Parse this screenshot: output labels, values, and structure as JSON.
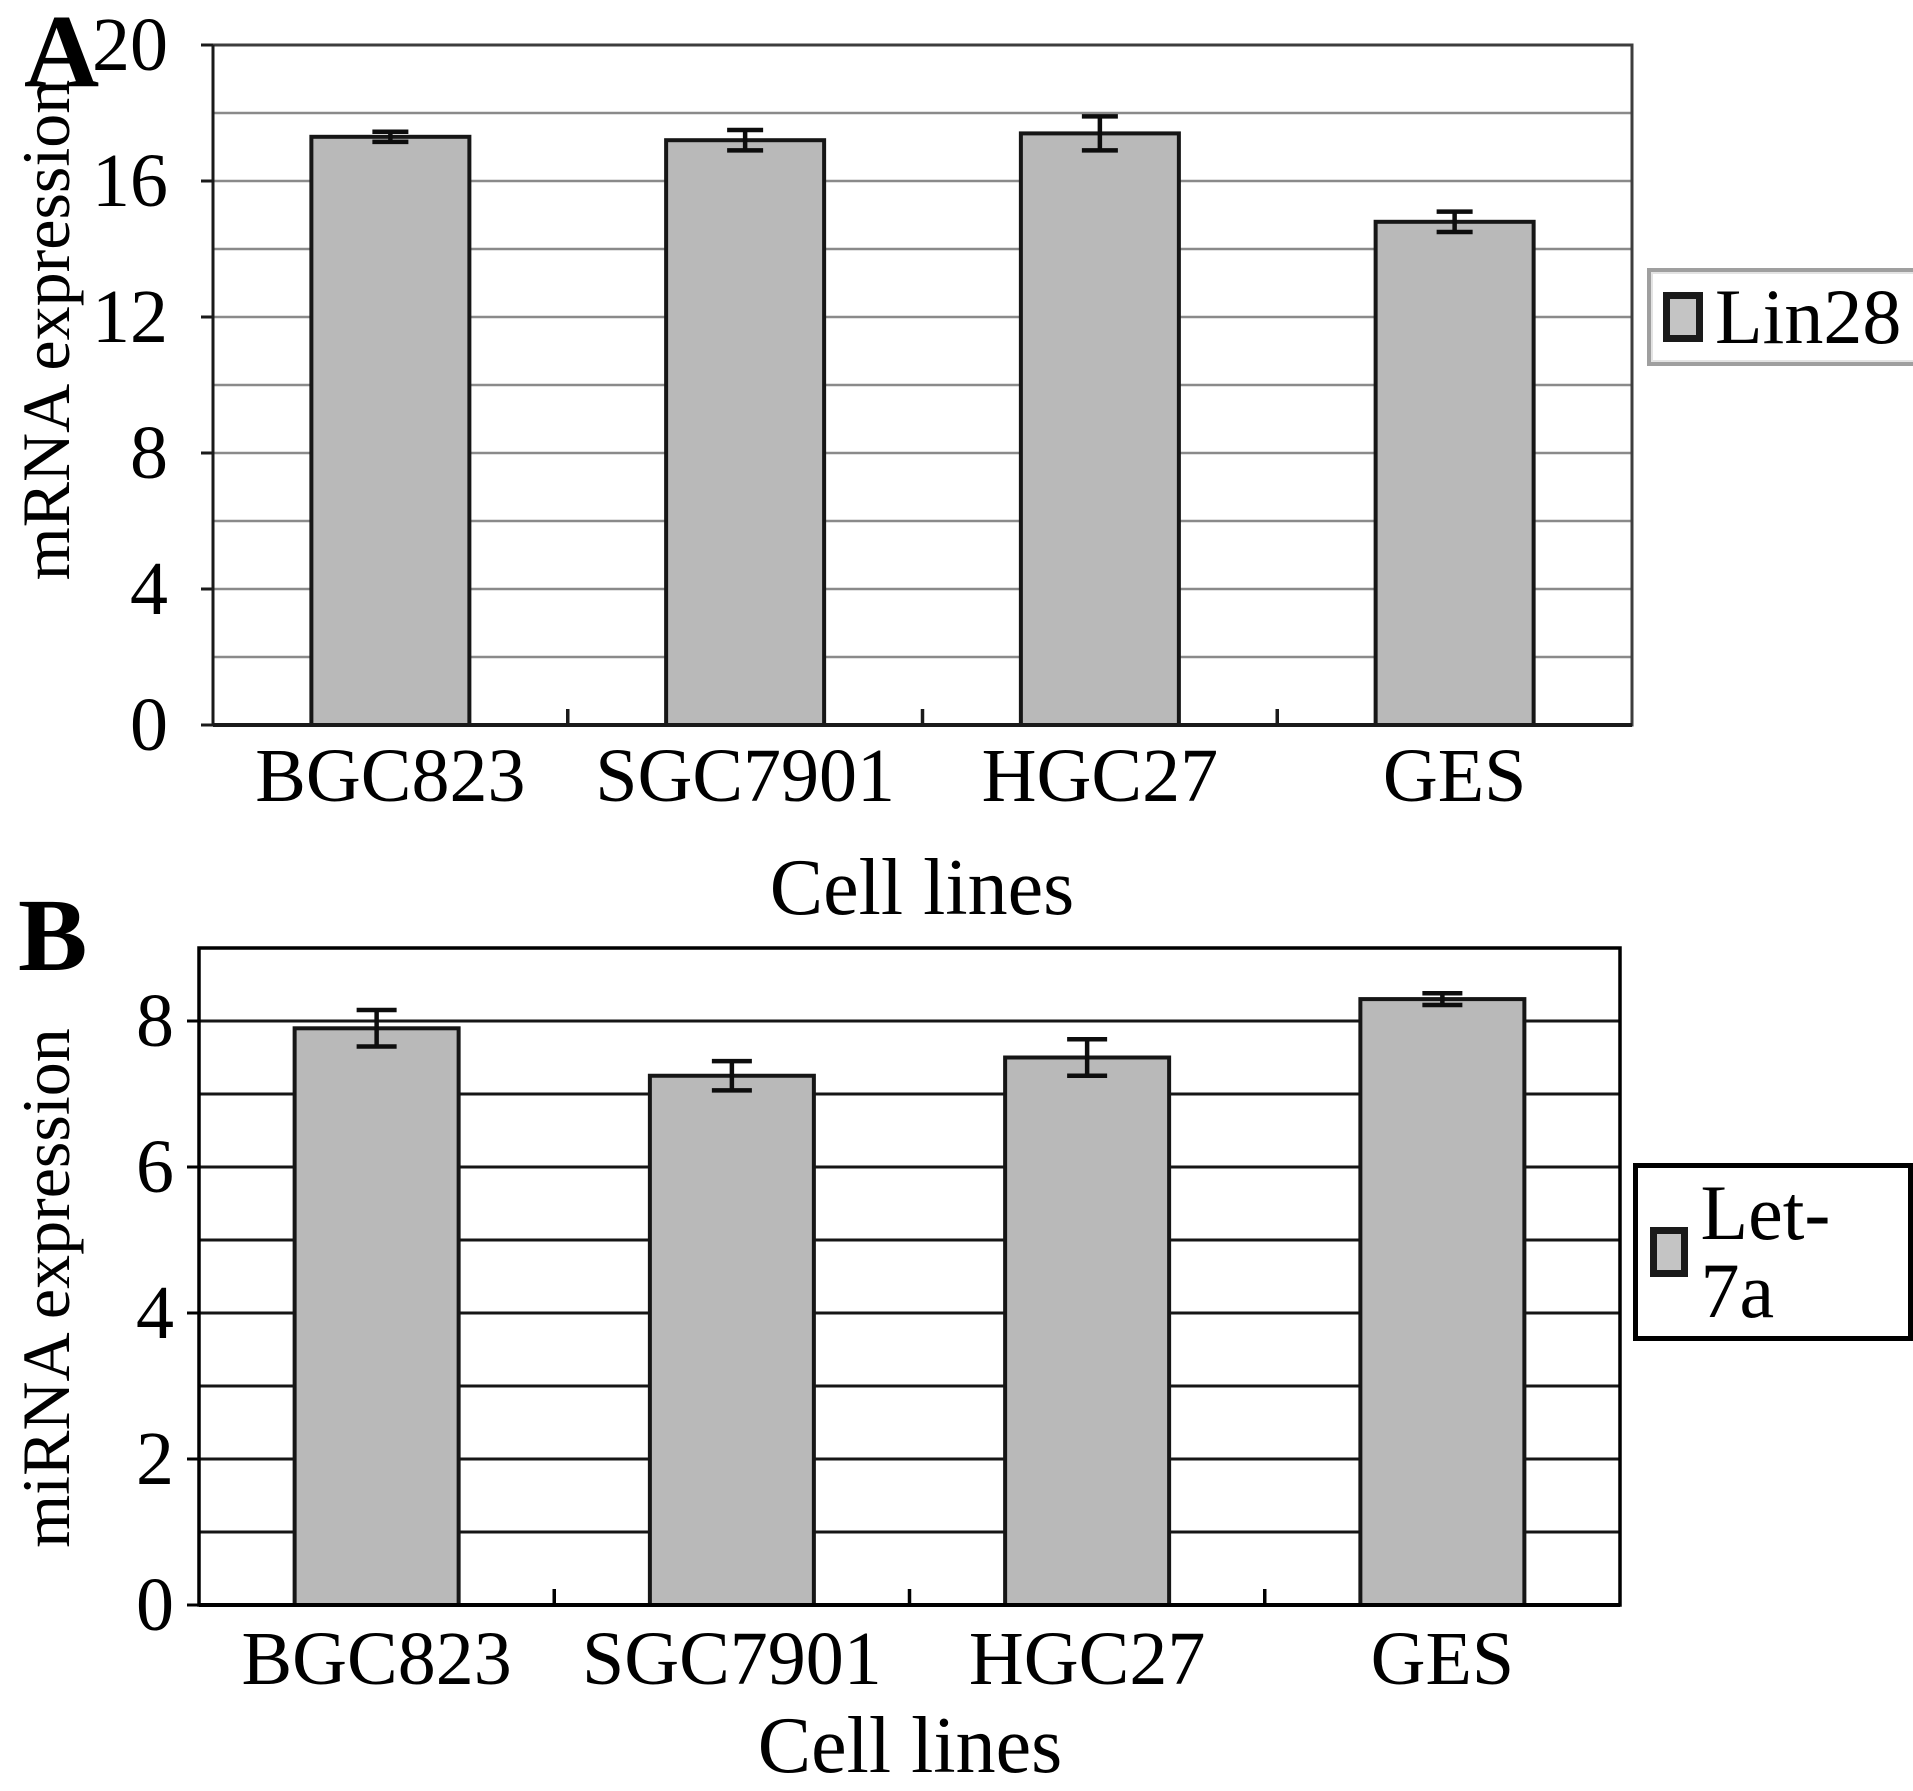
{
  "figure": {
    "background": "#ffffff",
    "bar_fill": "#b9b9b9",
    "bar_border": "#161616"
  },
  "chart_data": [
    {
      "type": "bar",
      "panel_label": "A",
      "title": "",
      "categories": [
        "BGC823",
        "SGC7901",
        "HGC27",
        "GES"
      ],
      "series": [
        {
          "name": "Lin28",
          "values": [
            17.3,
            17.2,
            17.4,
            14.8
          ],
          "errors": [
            0.15,
            0.3,
            0.5,
            0.3
          ]
        }
      ],
      "xlabel": "Cell lines",
      "ylabel": "mRNA expression",
      "ylim": [
        0,
        20
      ],
      "yticks": [
        0,
        4,
        8,
        12,
        16,
        20
      ],
      "ytick_step": 4,
      "grid_step": 2,
      "grid": true,
      "legend_position": "right",
      "bar_color": "#b9b9b9",
      "grid_color": "#8a8a8a"
    },
    {
      "type": "bar",
      "panel_label": "B",
      "title": "",
      "categories": [
        "BGC823",
        "SGC7901",
        "HGC27",
        "GES"
      ],
      "series": [
        {
          "name": "Let-7a",
          "values": [
            7.9,
            7.25,
            7.5,
            8.3
          ],
          "errors": [
            0.25,
            0.2,
            0.25,
            0.08
          ]
        }
      ],
      "xlabel": "Cell lines",
      "ylabel": "miRNA expression",
      "ylim": [
        0,
        9
      ],
      "yticks": [
        0,
        2,
        4,
        6,
        8
      ],
      "ytick_step": 2,
      "grid_step": 1,
      "grid": true,
      "legend_position": "right",
      "bar_color": "#b9b9b9",
      "grid_color": "#161616"
    }
  ]
}
